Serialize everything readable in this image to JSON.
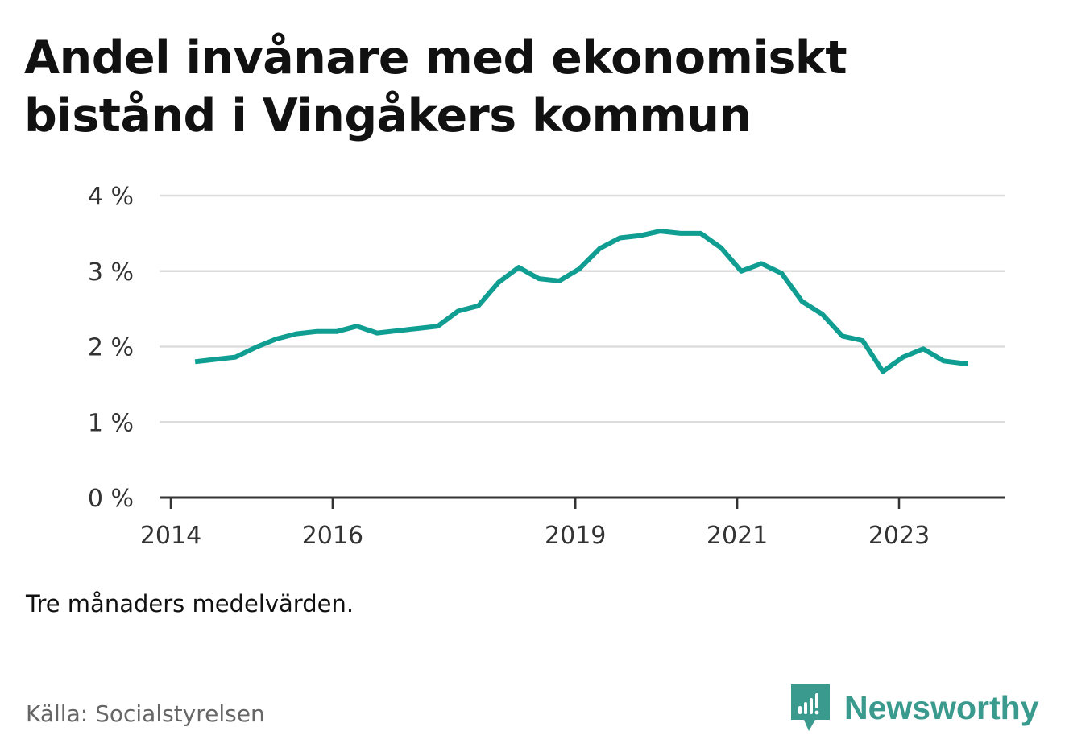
{
  "title": "Andel invånare med ekonomiskt bistånd i Vingåkers kommun",
  "note": "Tre månaders medelvärden.",
  "source": "Källa: Socialstyrelsen",
  "brand": {
    "name": "Newsworthy",
    "icon": "newsworthy-logo-icon",
    "color": "#3a9a8e"
  },
  "colors": {
    "line": "#0f9e91",
    "grid": "#dddddd",
    "axis": "#333333"
  },
  "chart_data": {
    "type": "line",
    "title": "Andel invånare med ekonomiskt bistånd i Vingåkers kommun",
    "xlabel": "",
    "ylabel": "",
    "ylim": [
      0,
      4
    ],
    "xlim": [
      2014,
      2024.45
    ],
    "yticks": [
      0,
      1,
      2,
      3,
      4
    ],
    "ytick_labels": [
      "0 %",
      "1 %",
      "2 %",
      "3 %",
      "4 %"
    ],
    "xticks": [
      2014,
      2016,
      2019,
      2021,
      2023
    ],
    "xtick_labels": [
      "2014",
      "2016",
      "2019",
      "2021",
      "2023"
    ],
    "grid": true,
    "series": [
      {
        "x": [
          2014.3,
          2014.55,
          2014.8,
          2015.05,
          2015.3,
          2015.55,
          2015.8,
          2016.05,
          2016.3,
          2016.55,
          2016.8,
          2017.05,
          2017.3,
          2017.55,
          2017.8,
          2018.05,
          2018.3,
          2018.55,
          2018.8,
          2019.05,
          2019.3,
          2019.55,
          2019.8,
          2020.05,
          2020.3,
          2020.55,
          2020.8,
          2021.05,
          2021.3,
          2021.55,
          2021.8,
          2022.05,
          2022.3,
          2022.55,
          2022.8,
          2023.05,
          2023.3,
          2023.55,
          2023.85
        ],
        "values": [
          1.8,
          1.83,
          1.86,
          1.99,
          2.1,
          2.17,
          2.2,
          2.2,
          2.27,
          2.18,
          2.21,
          2.24,
          2.27,
          2.47,
          2.54,
          2.85,
          3.05,
          2.9,
          2.87,
          3.03,
          3.3,
          3.44,
          3.47,
          3.53,
          3.5,
          3.5,
          3.31,
          3.0,
          3.1,
          2.97,
          2.6,
          2.43,
          2.14,
          2.08,
          1.67,
          1.86,
          1.97,
          1.81,
          1.77
        ]
      }
    ]
  }
}
